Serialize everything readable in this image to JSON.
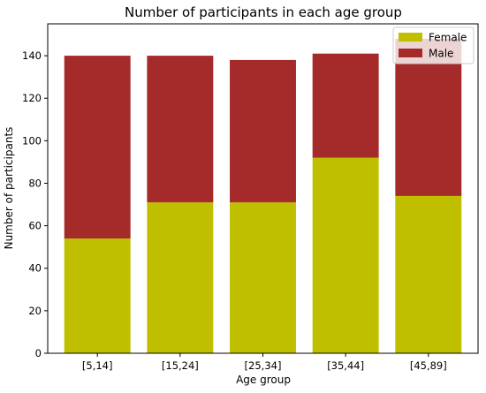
{
  "chart_data": {
    "type": "bar",
    "stacked": true,
    "title": "Number of participants in each age group",
    "xlabel": "Age group",
    "ylabel": "Number of participants",
    "categories": [
      "[5,14]",
      "[15,24]",
      "[25,34]",
      "[35,44]",
      "[45,89]"
    ],
    "series": [
      {
        "name": "Female",
        "color": "#bfbf00",
        "values": [
          54,
          71,
          71,
          92,
          74
        ]
      },
      {
        "name": "Male",
        "color": "#a52a2a",
        "values": [
          86,
          69,
          67,
          49,
          74
        ]
      }
    ],
    "ylim": [
      0,
      155
    ],
    "yticks": [
      0,
      20,
      40,
      60,
      80,
      100,
      120,
      140
    ],
    "grid": false,
    "legend_position": "top-right"
  }
}
